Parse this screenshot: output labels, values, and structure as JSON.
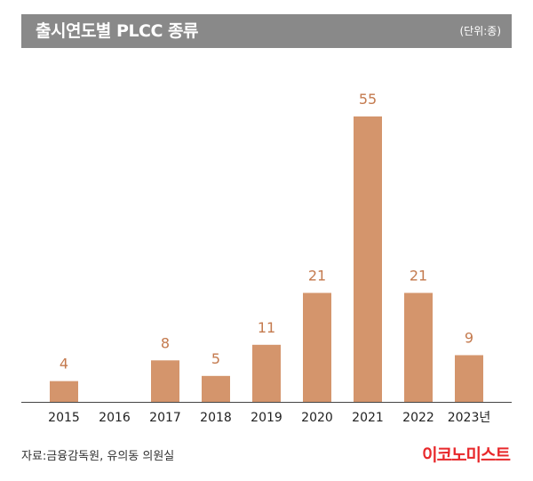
{
  "header": {
    "title": "출시연도별 PLCC 종류",
    "unit": "(단위:종)"
  },
  "chart_data": {
    "type": "bar",
    "title": "출시연도별 PLCC 종류",
    "unit": "(단위:종)",
    "categories": [
      "2015",
      "2016",
      "2017",
      "2018",
      "2019",
      "2020",
      "2021",
      "2022",
      "2023년"
    ],
    "values": [
      4,
      0,
      8,
      5,
      11,
      21,
      55,
      21,
      9
    ],
    "value_labels": [
      "4",
      "",
      "8",
      "5",
      "11",
      "21",
      "55",
      "21",
      "9"
    ],
    "ylim": [
      0,
      55
    ],
    "grid": false,
    "bar_color": "#d4956c",
    "label_color": "#c47a4e"
  },
  "footer": {
    "source": "자료:금융감독원, 유의동 의원실",
    "logo": "이코노미스트",
    "logo_color": "#e8282b"
  }
}
